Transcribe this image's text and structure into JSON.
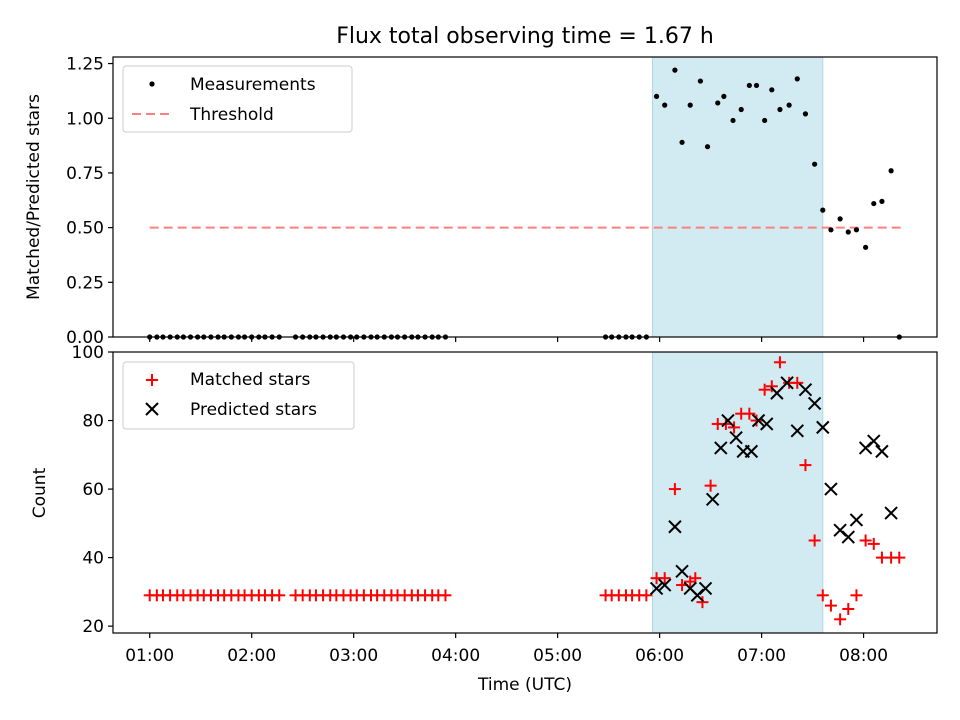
{
  "figure_title": "Flux total observing time = 1.67 h",
  "chart_data": [
    {
      "type": "scatter",
      "ylabel": "Matched/Predicted stars",
      "xlabel": "",
      "ylim": [
        0,
        1.28
      ],
      "yticks": [
        0.0,
        0.25,
        0.5,
        0.75,
        1.0,
        1.25
      ],
      "ytick_labels": [
        "0.00",
        "0.25",
        "0.50",
        "0.75",
        "1.00",
        "1.25"
      ],
      "x_unit": "hours UTC",
      "xlim": [
        0.64,
        8.72
      ],
      "xticks": [
        1,
        2,
        3,
        4,
        5,
        6,
        7,
        8
      ],
      "shaded_interval": [
        5.93,
        7.6
      ],
      "shade_color": "#ADD8E6",
      "legend_position": "top-left",
      "series": [
        {
          "name": "Measurements",
          "marker": "dot",
          "color": "#000000",
          "x": [
            1.0,
            1.07,
            1.13,
            1.2,
            1.27,
            1.33,
            1.4,
            1.47,
            1.53,
            1.6,
            1.67,
            1.73,
            1.8,
            1.87,
            1.93,
            2.0,
            2.07,
            2.13,
            2.2,
            2.27,
            2.43,
            2.5,
            2.57,
            2.63,
            2.7,
            2.77,
            2.83,
            2.9,
            2.97,
            3.03,
            3.1,
            3.17,
            3.23,
            3.3,
            3.37,
            3.43,
            3.5,
            3.57,
            3.63,
            3.7,
            3.77,
            3.83,
            3.9,
            5.47,
            5.53,
            5.6,
            5.67,
            5.73,
            5.8,
            5.87,
            5.97,
            6.05,
            6.15,
            6.22,
            6.3,
            6.4,
            6.47,
            6.57,
            6.63,
            6.72,
            6.8,
            6.88,
            6.95,
            7.03,
            7.1,
            7.18,
            7.27,
            7.35,
            7.43,
            7.52,
            7.6,
            7.68,
            7.77,
            7.85,
            7.93,
            8.02,
            8.1,
            8.18,
            8.27,
            8.35
          ],
          "y": [
            0,
            0,
            0,
            0,
            0,
            0,
            0,
            0,
            0,
            0,
            0,
            0,
            0,
            0,
            0,
            0,
            0,
            0,
            0,
            0,
            0,
            0,
            0,
            0,
            0,
            0,
            0,
            0,
            0,
            0,
            0,
            0,
            0,
            0,
            0,
            0,
            0,
            0,
            0,
            0,
            0,
            0,
            0,
            0,
            0,
            0,
            0,
            0,
            0,
            0,
            1.1,
            1.06,
            1.22,
            0.89,
            1.06,
            1.17,
            0.87,
            1.07,
            1.1,
            0.99,
            1.04,
            1.15,
            1.15,
            0.99,
            1.13,
            1.04,
            1.06,
            1.18,
            1.02,
            0.79,
            0.58,
            0.49,
            0.54,
            0.48,
            0.49,
            0.41,
            0.61,
            0.62,
            0.76,
            0.0
          ]
        },
        {
          "name": "Threshold",
          "marker": "dashed-line",
          "color": "#FF7F7F",
          "x": [
            1.0,
            8.38
          ],
          "y": [
            0.5,
            0.5
          ]
        }
      ]
    },
    {
      "type": "scatter",
      "ylabel": "Count",
      "xlabel": "Time (UTC)",
      "ylim": [
        18,
        100
      ],
      "yticks": [
        20,
        40,
        60,
        80,
        100
      ],
      "ytick_labels": [
        "20",
        "40",
        "60",
        "80",
        "100"
      ],
      "x_unit": "hours UTC",
      "xlim": [
        0.64,
        8.72
      ],
      "xticks": [
        1,
        2,
        3,
        4,
        5,
        6,
        7,
        8
      ],
      "xtick_labels": [
        "01:00",
        "02:00",
        "03:00",
        "04:00",
        "05:00",
        "06:00",
        "07:00",
        "08:00"
      ],
      "shaded_interval": [
        5.93,
        7.6
      ],
      "shade_color": "#ADD8E6",
      "legend_position": "top-left",
      "series": [
        {
          "name": "Matched stars",
          "marker": "plus",
          "color": "#FF0000",
          "x": [
            1.0,
            1.07,
            1.13,
            1.2,
            1.27,
            1.33,
            1.4,
            1.47,
            1.53,
            1.6,
            1.67,
            1.73,
            1.8,
            1.87,
            1.93,
            2.0,
            2.07,
            2.13,
            2.2,
            2.27,
            2.43,
            2.5,
            2.57,
            2.63,
            2.7,
            2.77,
            2.83,
            2.9,
            2.97,
            3.03,
            3.1,
            3.17,
            3.23,
            3.3,
            3.37,
            3.43,
            3.5,
            3.57,
            3.63,
            3.7,
            3.77,
            3.83,
            3.9,
            5.47,
            5.53,
            5.6,
            5.67,
            5.73,
            5.8,
            5.87,
            5.97,
            6.05,
            6.15,
            6.22,
            6.3,
            6.35,
            6.42,
            6.5,
            6.57,
            6.65,
            6.73,
            6.8,
            6.88,
            6.95,
            7.03,
            7.1,
            7.18,
            7.27,
            7.35,
            7.43,
            7.52,
            7.6,
            7.68,
            7.77,
            7.85,
            7.93,
            8.02,
            8.1,
            8.18,
            8.27,
            8.35
          ],
          "y": [
            29,
            29,
            29,
            29,
            29,
            29,
            29,
            29,
            29,
            29,
            29,
            29,
            29,
            29,
            29,
            29,
            29,
            29,
            29,
            29,
            29,
            29,
            29,
            29,
            29,
            29,
            29,
            29,
            29,
            29,
            29,
            29,
            29,
            29,
            29,
            29,
            29,
            29,
            29,
            29,
            29,
            29,
            29,
            29,
            29,
            29,
            29,
            29,
            29,
            29,
            34,
            34,
            60,
            32,
            33,
            34,
            27,
            61,
            79,
            79,
            78,
            82,
            82,
            80,
            89,
            90,
            97,
            91,
            91,
            67,
            45,
            29,
            26,
            22,
            25,
            29,
            45,
            44,
            40,
            40,
            40
          ]
        },
        {
          "name": "Predicted stars",
          "marker": "x",
          "color": "#000000",
          "x": [
            5.97,
            6.05,
            6.15,
            6.22,
            6.3,
            6.37,
            6.45,
            6.52,
            6.6,
            6.67,
            6.75,
            6.82,
            6.9,
            6.97,
            7.05,
            7.15,
            7.25,
            7.35,
            7.43,
            7.52,
            7.6,
            7.68,
            7.77,
            7.85,
            7.93,
            8.02,
            8.1,
            8.18,
            8.27
          ],
          "y": [
            31,
            32,
            49,
            36,
            31,
            29,
            31,
            57,
            72,
            80,
            75,
            71,
            71,
            80,
            79,
            88,
            91,
            77,
            89,
            85,
            78,
            60,
            48,
            46,
            51,
            72,
            74,
            71,
            53
          ]
        }
      ]
    }
  ]
}
